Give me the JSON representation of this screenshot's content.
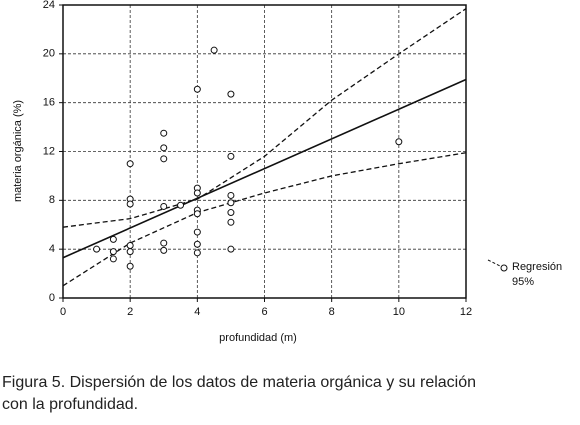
{
  "chart_data": {
    "type": "scatter",
    "y_label": "materia orgánica (%)",
    "x_label": "profundidad (m)",
    "x": [
      1,
      1.5,
      1.5,
      1.5,
      2,
      2,
      2,
      2,
      2,
      2,
      3,
      3,
      3,
      3,
      3,
      3,
      3.5,
      4,
      4,
      4,
      4,
      4,
      4,
      4,
      4,
      4.5,
      5,
      5,
      5,
      5,
      5,
      5,
      5,
      10
    ],
    "y": [
      4.0,
      4.8,
      3.8,
      3.2,
      11.0,
      8.1,
      7.7,
      4.3,
      3.8,
      2.6,
      13.5,
      12.3,
      11.4,
      7.5,
      4.5,
      3.9,
      7.6,
      17.1,
      9.0,
      8.6,
      7.2,
      6.9,
      5.4,
      4.4,
      3.7,
      20.3,
      16.7,
      11.6,
      8.4,
      7.8,
      7.0,
      6.2,
      4.0,
      12.8
    ],
    "color": "#111111",
    "lines": [
      {
        "style": "solid",
        "x": [
          0,
          12
        ],
        "values": [
          3.3,
          17.9
        ]
      },
      {
        "style": "dashed",
        "x": [
          0,
          2,
          4,
          6,
          8,
          10,
          12
        ],
        "values": [
          5.8,
          6.5,
          8.1,
          11.6,
          16.2,
          20.0,
          23.7
        ]
      },
      {
        "style": "dashed",
        "x": [
          0,
          2,
          4,
          6,
          8,
          10,
          12
        ],
        "values": [
          1.0,
          4.5,
          7.0,
          8.6,
          10.0,
          11.0,
          11.9
        ]
      }
    ],
    "legend": [
      "Regresión",
      "95%"
    ],
    "xlim": [
      0,
      12
    ],
    "xticks": [
      0,
      2,
      4,
      6,
      8,
      10,
      12
    ],
    "ylim": [
      0,
      24
    ],
    "yticks": [
      0,
      4,
      8,
      12,
      16,
      20,
      24
    ],
    "grid": true
  },
  "caption": [
    "Figura 5. Dispersión de los datos de materia orgánica y su relación",
    "con la profundidad."
  ]
}
